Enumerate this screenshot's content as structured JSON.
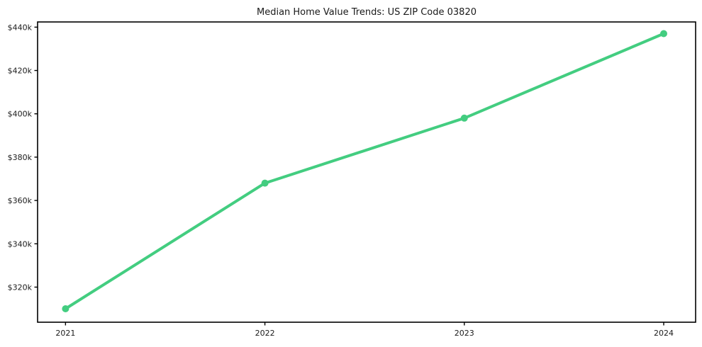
{
  "chart_data": {
    "type": "line",
    "title": "Median Home Value Trends: US ZIP Code 03820",
    "x": [
      2021,
      2022,
      2023,
      2024
    ],
    "series": [
      {
        "name": "median-home-value",
        "values": [
          310000,
          368000,
          398000,
          437000
        ]
      }
    ],
    "x_ticks": [
      {
        "value": 2021,
        "label": "2021"
      },
      {
        "value": 2022,
        "label": "2022"
      },
      {
        "value": 2023,
        "label": "2023"
      },
      {
        "value": 2024,
        "label": "2024"
      }
    ],
    "y_ticks": [
      {
        "value": 320000,
        "label": "$320k"
      },
      {
        "value": 340000,
        "label": "$340k"
      },
      {
        "value": 360000,
        "label": "$360k"
      },
      {
        "value": 380000,
        "label": "$380k"
      },
      {
        "value": 400000,
        "label": "$400k"
      },
      {
        "value": 420000,
        "label": "$420k"
      },
      {
        "value": 440000,
        "label": "$440k"
      }
    ],
    "xlim": [
      2020.86,
      2024.16
    ],
    "ylim": [
      303800,
      442400
    ],
    "grid": false,
    "legend": "none",
    "line_color": "#43cd80",
    "marker_color": "#43cd80",
    "axis_color": "#000000",
    "text_color": "#1a1a1a",
    "background": "#ffffff"
  }
}
